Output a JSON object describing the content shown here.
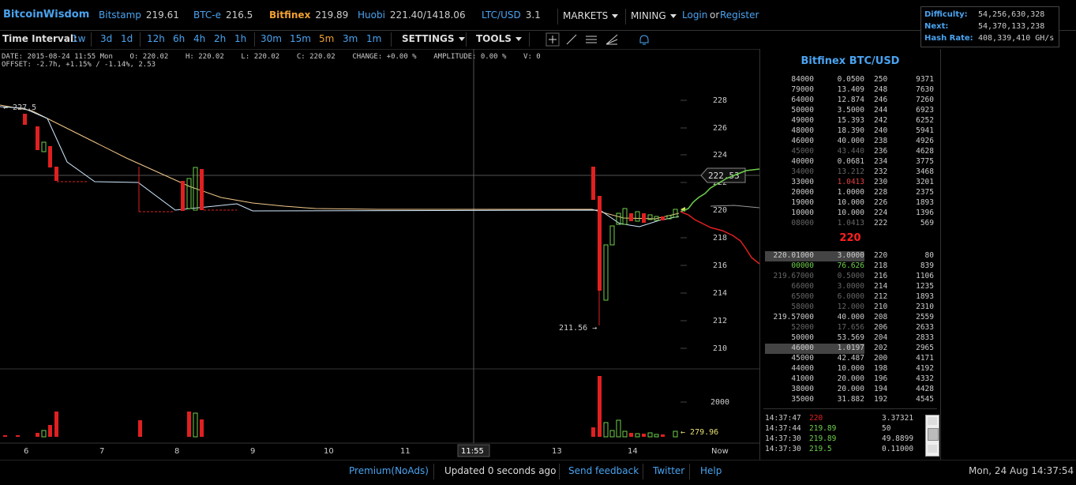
{
  "header": {
    "logo": "BitcoinWisdom",
    "markets": [
      {
        "name": "Bitstamp",
        "price": "219.61"
      },
      {
        "name": "BTC-e",
        "price": "216.5"
      },
      {
        "name": "Bitfinex",
        "price": "219.89"
      },
      {
        "name": "Huobi",
        "price": "221.40/1418.06"
      },
      {
        "name": "LTC/USD",
        "price": "3.1"
      }
    ],
    "markets_menu": "MARKETS",
    "mining_menu": "MINING",
    "login": "Login",
    "or": "or",
    "register": "Register"
  },
  "network": {
    "difficulty_label": "Difficulty:",
    "difficulty": "54,256,630,328",
    "next_label": "Next:",
    "next": "54,370,133,238",
    "hashrate_label": "Hash Rate:",
    "hashrate": "408,339,410 GH/s"
  },
  "toolbar": {
    "interval_label": "Time Interval:",
    "intervals": [
      "1w",
      "3d",
      "1d",
      "12h",
      "6h",
      "4h",
      "2h",
      "1h",
      "30m",
      "15m",
      "5m",
      "3m",
      "1m"
    ],
    "active_interval": "5m",
    "settings": "SETTINGS",
    "tools": "TOOLS"
  },
  "ohlc": {
    "line1": "DATE: 2015-08-24 11:55 Mon    O: 220.02    H: 220.02    L: 220.02    C: 220.02    CHANGE: +0.00 %    AMPLITUDE: 0.00 %    V: 0",
    "line2": "OFFSET: -2.7h, +1.15% / -1.14%, 2.53"
  },
  "chart_data": {
    "type": "candlestick",
    "price_ticks": [
      "228",
      "226",
      "224",
      "222",
      "220",
      "218",
      "216",
      "214",
      "212",
      "210"
    ],
    "volume_tick": "2000",
    "x_ticks": [
      "6",
      "7",
      "8",
      "9",
      "10",
      "11",
      "11:55",
      "13",
      "14",
      "Now"
    ],
    "crosshair_price": "222.53",
    "high_label": "227.5",
    "low_label": "211.56",
    "last_volume": "279.96"
  },
  "orderbook": {
    "title": "Bitfinex BTC/USD",
    "mid_price": "220",
    "asks": [
      [
        "84000",
        "0.0500",
        "250",
        "9371"
      ],
      [
        "79000",
        "13.409",
        "248",
        "7630"
      ],
      [
        "64000",
        "12.874",
        "246",
        "7260"
      ],
      [
        "50000",
        "3.5000",
        "244",
        "6923"
      ],
      [
        "49000",
        "15.393",
        "242",
        "6252"
      ],
      [
        "48000",
        "18.390",
        "240",
        "5941"
      ],
      [
        "46000",
        "40.000",
        "238",
        "4926"
      ],
      [
        "45000",
        "43.440",
        "236",
        "4628"
      ],
      [
        "40000",
        "0.0681",
        "234",
        "3775"
      ],
      [
        "34000",
        "13.212",
        "232",
        "3468"
      ],
      [
        "33000",
        "1.0413",
        "230",
        "3201"
      ],
      [
        "20000",
        "1.0000",
        "228",
        "2375"
      ],
      [
        "19000",
        "10.000",
        "226",
        "1893"
      ],
      [
        "10000",
        "10.000",
        "224",
        "1396"
      ],
      [
        "08000",
        "1.0413",
        "222",
        "569"
      ]
    ],
    "bids": [
      [
        "220.01000",
        "3.0000",
        "220",
        "80"
      ],
      [
        "00000",
        "76.626",
        "218",
        "839"
      ],
      [
        "219.67000",
        "0.5000",
        "216",
        "1106"
      ],
      [
        "66000",
        "3.0000",
        "214",
        "1235"
      ],
      [
        "65000",
        "6.0000",
        "212",
        "1893"
      ],
      [
        "58000",
        "12.000",
        "210",
        "2310"
      ],
      [
        "219.57000",
        "40.000",
        "208",
        "2559"
      ],
      [
        "52000",
        "17.656",
        "206",
        "2633"
      ],
      [
        "50000",
        "53.569",
        "204",
        "2833"
      ],
      [
        "46000",
        "1.0197",
        "202",
        "2965"
      ],
      [
        "45000",
        "42.487",
        "200",
        "4171"
      ],
      [
        "44000",
        "10.000",
        "198",
        "4192"
      ],
      [
        "41000",
        "20.000",
        "196",
        "4332"
      ],
      [
        "38000",
        "20.000",
        "194",
        "4428"
      ],
      [
        "35000",
        "31.882",
        "192",
        "4545"
      ]
    ],
    "trades": [
      [
        "14:37:47",
        "220",
        "3.37321"
      ],
      [
        "14:37:44",
        "219.89",
        "50"
      ],
      [
        "14:37:30",
        "219.89",
        "49.8899"
      ],
      [
        "14:37:30",
        "219.5",
        "0.11000"
      ]
    ]
  },
  "footer": {
    "premium": "Premium(NoAds)",
    "updated": "Updated 0 seconds ago",
    "feedback": "Send feedback",
    "twitter": "Twitter",
    "help": "Help",
    "clock": "Mon, 24 Aug 14:37:54"
  },
  "colors": {
    "accent": "#4aa3f0",
    "up": "#6fd04c",
    "down": "#e02020",
    "active": "#f0a030"
  }
}
